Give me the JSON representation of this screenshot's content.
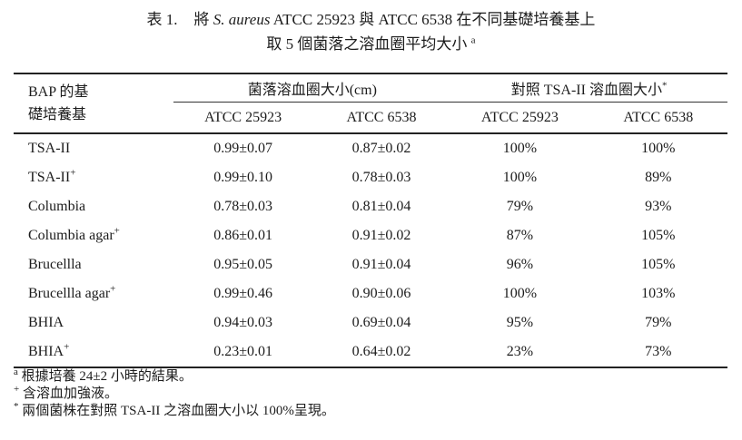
{
  "title": {
    "label": "表 1.",
    "line1_pre": "將 ",
    "line1_italic": "S. aureus",
    "line1_post": " ATCC 25923 與 ATCC 6538 在不同基礎培養基上",
    "line2": "取 5 個菌落之溶血圈平均大小 ",
    "line2_sup": "a"
  },
  "table": {
    "col1_header_line1": "BAP 的基",
    "col1_header_line2": "礎培養基",
    "group1_header": "菌落溶血圈大小(cm)",
    "group2_header": "對照 TSA-II 溶血圈大小",
    "group2_sup": "*",
    "subheaders": [
      "ATCC 25923",
      "ATCC 6538",
      "ATCC 25923",
      "ATCC 6538"
    ],
    "rows": [
      {
        "label": "TSA-II",
        "label_sup": "",
        "values": [
          "0.99±0.07",
          "0.87±0.02",
          "100%",
          "100%"
        ]
      },
      {
        "label": "TSA-II",
        "label_sup": "+",
        "values": [
          "0.99±0.10",
          "0.78±0.03",
          "100%",
          "89%"
        ]
      },
      {
        "label": "Columbia",
        "label_sup": "",
        "values": [
          "0.78±0.03",
          "0.81±0.04",
          "79%",
          "93%"
        ]
      },
      {
        "label": "Columbia agar",
        "label_sup": "+",
        "values": [
          "0.86±0.01",
          "0.91±0.02",
          "87%",
          "105%"
        ]
      },
      {
        "label": "Brucellla",
        "label_sup": "",
        "values": [
          "0.95±0.05",
          "0.91±0.04",
          "96%",
          "105%"
        ]
      },
      {
        "label": "Brucellla agar",
        "label_sup": "+",
        "values": [
          "0.99±0.46",
          "0.90±0.06",
          "100%",
          "103%"
        ]
      },
      {
        "label": "BHIA",
        "label_sup": "",
        "values": [
          "0.94±0.03",
          "0.69±0.04",
          "95%",
          "79%"
        ]
      },
      {
        "label": "BHIA",
        "label_sup": "+",
        "values": [
          "0.23±0.01",
          "0.64±0.02",
          "23%",
          "73%"
        ]
      }
    ]
  },
  "footnotes": [
    {
      "marker": "a",
      "text": "根據培養 24±2 小時的結果。"
    },
    {
      "marker": "+",
      "text": "含溶血加強液。"
    },
    {
      "marker": "*",
      "text": "兩個菌株在對照 TSA-II 之溶血圈大小以 100%呈現。"
    }
  ],
  "chart_data": {
    "type": "table",
    "title": "表 1. 將 S. aureus ATCC 25923 與 ATCC 6538 在不同基礎培養基上取 5 個菌落之溶血圈平均大小",
    "column_groups": [
      "BAP 的基礎培養基",
      "菌落溶血圈大小(cm)",
      "對照 TSA-II 溶血圈大小"
    ],
    "columns": [
      "BAP 的基礎培養基",
      "菌落溶血圈大小(cm) ATCC 25923",
      "菌落溶血圈大小(cm) ATCC 6538",
      "對照 TSA-II 溶血圈大小 ATCC 25923",
      "對照 TSA-II 溶血圈大小 ATCC 6538"
    ],
    "rows": [
      [
        "TSA-II",
        "0.99±0.07",
        "0.87±0.02",
        "100%",
        "100%"
      ],
      [
        "TSA-II+",
        "0.99±0.10",
        "0.78±0.03",
        "100%",
        "89%"
      ],
      [
        "Columbia",
        "0.78±0.03",
        "0.81±0.04",
        "79%",
        "93%"
      ],
      [
        "Columbia agar+",
        "0.86±0.01",
        "0.91±0.02",
        "87%",
        "105%"
      ],
      [
        "Brucellla",
        "0.95±0.05",
        "0.91±0.04",
        "96%",
        "105%"
      ],
      [
        "Brucellla agar+",
        "0.99±0.46",
        "0.90±0.06",
        "100%",
        "103%"
      ],
      [
        "BHIA",
        "0.94±0.03",
        "0.69±0.04",
        "95%",
        "79%"
      ],
      [
        "BHIA+",
        "0.23±0.01",
        "0.64±0.02",
        "23%",
        "73%"
      ]
    ]
  }
}
